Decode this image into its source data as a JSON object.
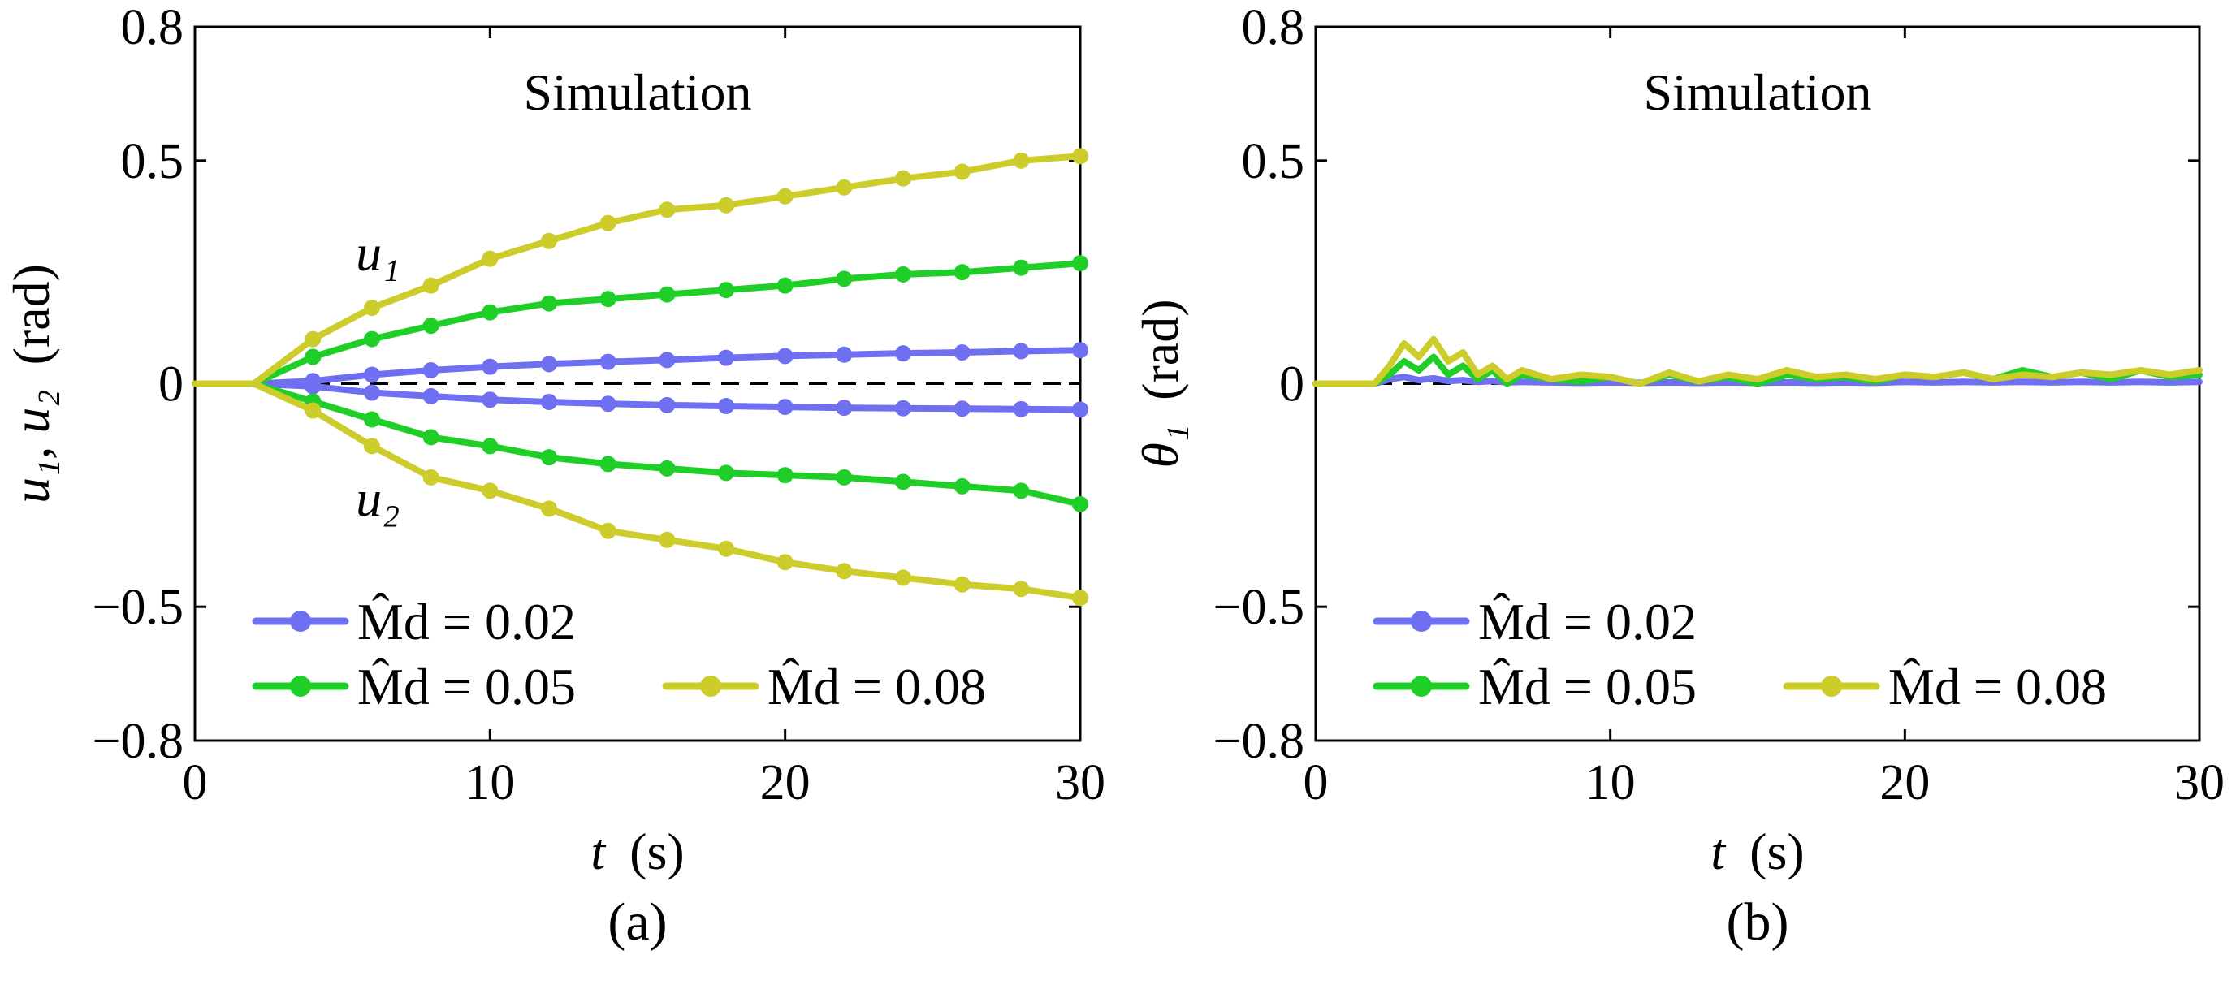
{
  "chart_data": [
    {
      "type": "line",
      "panel_label": "(a)",
      "title": "Simulation",
      "xlabel": {
        "symbol": "t",
        "unit": "(s)"
      },
      "ylabel": {
        "symbol": "u₁, u₂",
        "unit": "(rad)"
      },
      "xlim": [
        0,
        30
      ],
      "ylim": [
        -0.8,
        0.8
      ],
      "xticks": [
        "0",
        "10",
        "20",
        "30"
      ],
      "yticks": [
        "0.8",
        "0.5",
        "0",
        "−0.5",
        "−0.8"
      ],
      "ytick_values": [
        0.8,
        0.5,
        0,
        -0.5,
        -0.8
      ],
      "xtick_values": [
        0,
        10,
        20,
        30
      ],
      "reference_line": 0,
      "curve_annotations": [
        {
          "text": "u₁",
          "x": 6.2,
          "y": 0.29
        },
        {
          "text": "u₂",
          "x": 6.2,
          "y": -0.26
        }
      ],
      "legend": [
        {
          "label": "M̂d = 0.02",
          "color": "#6f6ff2"
        },
        {
          "label": "M̂d = 0.05",
          "color": "#1fcf28"
        },
        {
          "label": "M̂d = 0.08",
          "color": "#cccc2a"
        }
      ],
      "x": [
        0,
        2,
        4,
        6,
        8,
        10,
        12,
        14,
        16,
        18,
        20,
        22,
        24,
        26,
        28,
        30
      ],
      "series": [
        {
          "name": "u1, M̂d = 0.02",
          "color": "#6f6ff2",
          "values": [
            0,
            0,
            0.006,
            0.02,
            0.03,
            0.038,
            0.044,
            0.049,
            0.053,
            0.058,
            0.062,
            0.065,
            0.068,
            0.07,
            0.073,
            0.075
          ]
        },
        {
          "name": "u2, M̂d = 0.02",
          "color": "#6f6ff2",
          "values": [
            0,
            0,
            -0.006,
            -0.02,
            -0.028,
            -0.036,
            -0.041,
            -0.045,
            -0.048,
            -0.05,
            -0.052,
            -0.054,
            -0.055,
            -0.056,
            -0.057,
            -0.058
          ]
        },
        {
          "name": "u1, M̂d = 0.05",
          "color": "#1fcf28",
          "values": [
            0,
            0,
            0.06,
            0.1,
            0.13,
            0.16,
            0.18,
            0.19,
            0.2,
            0.21,
            0.22,
            0.235,
            0.245,
            0.25,
            0.26,
            0.27
          ]
        },
        {
          "name": "u2, M̂d = 0.05",
          "color": "#1fcf28",
          "values": [
            0,
            0,
            -0.04,
            -0.08,
            -0.12,
            -0.14,
            -0.165,
            -0.18,
            -0.19,
            -0.2,
            -0.205,
            -0.21,
            -0.22,
            -0.23,
            -0.24,
            -0.27
          ]
        },
        {
          "name": "u1, M̂d = 0.08",
          "color": "#cccc2a",
          "values": [
            0,
            0,
            0.1,
            0.17,
            0.22,
            0.28,
            0.32,
            0.36,
            0.39,
            0.4,
            0.42,
            0.44,
            0.46,
            0.475,
            0.5,
            0.51
          ]
        },
        {
          "name": "u2, M̂d = 0.08",
          "color": "#cccc2a",
          "values": [
            0,
            0,
            -0.06,
            -0.14,
            -0.21,
            -0.24,
            -0.28,
            -0.33,
            -0.35,
            -0.37,
            -0.4,
            -0.42,
            -0.435,
            -0.45,
            -0.46,
            -0.48
          ]
        }
      ]
    },
    {
      "type": "line",
      "panel_label": "(b)",
      "title": "Simulation",
      "xlabel": {
        "symbol": "t",
        "unit": "(s)"
      },
      "ylabel": {
        "symbol": "θ₁",
        "unit": "(rad)"
      },
      "xlim": [
        0,
        30
      ],
      "ylim": [
        -0.8,
        0.8
      ],
      "xticks": [
        "0",
        "10",
        "20",
        "30"
      ],
      "yticks": [
        "0.8",
        "0.5",
        "0",
        "−0.5",
        "−0.8"
      ],
      "ytick_values": [
        0.8,
        0.5,
        0,
        -0.5,
        -0.8
      ],
      "xtick_values": [
        0,
        10,
        20,
        30
      ],
      "reference_line": 0,
      "legend": [
        {
          "label": "M̂d = 0.02",
          "color": "#6f6ff2"
        },
        {
          "label": "M̂d = 0.05",
          "color": "#1fcf28"
        },
        {
          "label": "M̂d = 0.08",
          "color": "#cccc2a"
        }
      ],
      "x": [
        0,
        2,
        2.5,
        3,
        3.5,
        4,
        4.5,
        5,
        5.5,
        6,
        6.5,
        7,
        8,
        9,
        10,
        11,
        12,
        13,
        14,
        15,
        16,
        17,
        18,
        19,
        20,
        21,
        22,
        23,
        24,
        25,
        26,
        27,
        28,
        29,
        30
      ],
      "series": [
        {
          "name": "θ1, M̂d = 0.02",
          "color": "#6f6ff2",
          "values": [
            0,
            0,
            0.01,
            0.015,
            0.008,
            0.012,
            0.006,
            0.008,
            0.004,
            0.006,
            0.003,
            0.004,
            0.003,
            0.002,
            0.003,
            0.002,
            0.003,
            0.002,
            0.003,
            0.002,
            0.003,
            0.002,
            0.003,
            0.002,
            0.004,
            0.003,
            0.004,
            0.003,
            0.004,
            0.003,
            0.004,
            0.003,
            0.004,
            0.003,
            0.004
          ]
        },
        {
          "name": "θ1, M̂d = 0.05",
          "color": "#1fcf28",
          "values": [
            0,
            0,
            0.02,
            0.05,
            0.03,
            0.06,
            0.02,
            0.04,
            0.01,
            0.03,
            0.0,
            0.02,
            0.01,
            0.005,
            0.015,
            0.0,
            0.02,
            0.005,
            0.015,
            0.0,
            0.02,
            0.01,
            0.015,
            0.005,
            0.02,
            0.015,
            0.025,
            0.01,
            0.03,
            0.015,
            0.025,
            0.01,
            0.03,
            0.015,
            0.02
          ]
        },
        {
          "name": "θ1, M̂d = 0.08",
          "color": "#cccc2a",
          "values": [
            0,
            0,
            0.04,
            0.09,
            0.06,
            0.1,
            0.05,
            0.07,
            0.02,
            0.04,
            0.01,
            0.03,
            0.01,
            0.02,
            0.015,
            0.0,
            0.025,
            0.005,
            0.02,
            0.01,
            0.03,
            0.015,
            0.02,
            0.01,
            0.02,
            0.015,
            0.025,
            0.01,
            0.02,
            0.015,
            0.025,
            0.02,
            0.03,
            0.02,
            0.03
          ]
        }
      ]
    }
  ]
}
